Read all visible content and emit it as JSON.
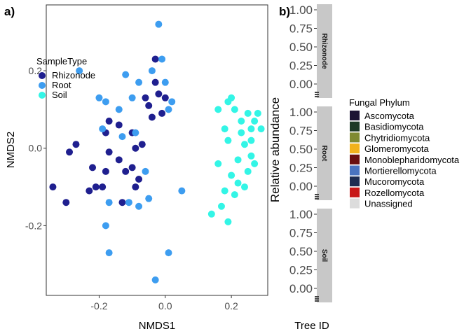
{
  "chart_data": [
    {
      "panel_tag": "a)",
      "type": "scatter",
      "xlabel": "NMDS1",
      "ylabel": "NMDS2",
      "xlim": [
        -0.36,
        0.31
      ],
      "ylim": [
        -0.38,
        0.37
      ],
      "xticks": [
        -0.2,
        0.0,
        0.2
      ],
      "xtick_labels": [
        "-0.2",
        "0.0",
        "0.2"
      ],
      "yticks": [
        -0.2,
        0.0,
        0.2
      ],
      "ytick_labels": [
        "-0.2",
        "0.0",
        "0.2"
      ],
      "grid": false,
      "legend": {
        "title": "SampleType",
        "placement": "top-left",
        "entries": [
          "Rhizonode",
          "Root",
          "Soil"
        ]
      },
      "colors": {
        "Rhizonode": "#1f1f8f",
        "Root": "#3d9df0",
        "Soil": "#33f5e6"
      },
      "series": [
        {
          "name": "Rhizonode",
          "points": [
            [
              -0.34,
              -0.1
            ],
            [
              -0.3,
              -0.14
            ],
            [
              -0.29,
              -0.01
            ],
            [
              -0.27,
              0.01
            ],
            [
              -0.23,
              -0.11
            ],
            [
              -0.22,
              -0.05
            ],
            [
              -0.21,
              -0.1
            ],
            [
              -0.19,
              -0.1
            ],
            [
              -0.18,
              -0.06
            ],
            [
              -0.18,
              0.04
            ],
            [
              -0.17,
              0.07
            ],
            [
              -0.17,
              -0.01
            ],
            [
              -0.14,
              -0.03
            ],
            [
              -0.14,
              0.06
            ],
            [
              -0.13,
              -0.14
            ],
            [
              -0.12,
              -0.06
            ],
            [
              -0.1,
              -0.05
            ],
            [
              -0.1,
              0.04
            ],
            [
              -0.09,
              0.0
            ],
            [
              -0.09,
              -0.1
            ],
            [
              -0.08,
              -0.08
            ],
            [
              -0.07,
              0.01
            ],
            [
              -0.06,
              0.13
            ],
            [
              -0.05,
              0.11
            ],
            [
              -0.04,
              0.08
            ],
            [
              -0.03,
              0.17
            ],
            [
              -0.02,
              0.14
            ],
            [
              -0.01,
              0.09
            ],
            [
              0.0,
              0.13
            ],
            [
              -0.03,
              0.23
            ]
          ]
        },
        {
          "name": "Root",
          "points": [
            [
              -0.26,
              0.2
            ],
            [
              -0.2,
              0.13
            ],
            [
              -0.19,
              0.05
            ],
            [
              -0.18,
              0.12
            ],
            [
              -0.18,
              -0.2
            ],
            [
              -0.17,
              -0.14
            ],
            [
              -0.17,
              -0.27
            ],
            [
              -0.14,
              0.1
            ],
            [
              -0.13,
              0.03
            ],
            [
              -0.12,
              0.19
            ],
            [
              -0.11,
              -0.14
            ],
            [
              -0.1,
              0.13
            ],
            [
              -0.09,
              0.04
            ],
            [
              -0.08,
              -0.15
            ],
            [
              -0.08,
              0.17
            ],
            [
              -0.06,
              -0.06
            ],
            [
              -0.05,
              -0.13
            ],
            [
              -0.04,
              0.2
            ],
            [
              -0.02,
              0.32
            ],
            [
              -0.01,
              0.23
            ],
            [
              0.0,
              0.17
            ],
            [
              0.01,
              0.1
            ],
            [
              0.02,
              0.12
            ],
            [
              0.05,
              -0.11
            ],
            [
              0.01,
              -0.27
            ],
            [
              -0.03,
              -0.34
            ]
          ]
        },
        {
          "name": "Soil",
          "points": [
            [
              0.14,
              -0.17
            ],
            [
              0.16,
              -0.04
            ],
            [
              0.18,
              -0.11
            ],
            [
              0.18,
              0.05
            ],
            [
              0.19,
              -0.19
            ],
            [
              0.19,
              0.02
            ],
            [
              0.2,
              -0.07
            ],
            [
              0.2,
              0.13
            ],
            [
              0.21,
              0.1
            ],
            [
              0.21,
              -0.12
            ],
            [
              0.22,
              -0.03
            ],
            [
              0.22,
              -0.09
            ],
            [
              0.23,
              0.07
            ],
            [
              0.23,
              0.04
            ],
            [
              0.24,
              0.01
            ],
            [
              0.24,
              -0.1
            ],
            [
              0.25,
              -0.06
            ],
            [
              0.25,
              0.09
            ],
            [
              0.26,
              0.05
            ],
            [
              0.26,
              0.02
            ],
            [
              0.26,
              -0.02
            ],
            [
              0.27,
              0.07
            ],
            [
              0.27,
              -0.04
            ],
            [
              0.28,
              0.09
            ],
            [
              0.29,
              0.05
            ],
            [
              0.19,
              0.12
            ],
            [
              0.17,
              -0.15
            ],
            [
              0.16,
              0.1
            ]
          ]
        }
      ]
    },
    {
      "panel_tag": "b)",
      "type": "bar",
      "stacked": true,
      "xlabel": "Tree ID",
      "ylabel": "Relative abundance",
      "ylim": [
        0,
        1
      ],
      "yticks": [
        0,
        0.25,
        0.5,
        0.75,
        1.0
      ],
      "ytick_labels": [
        "0.00",
        "0.25",
        "0.50",
        "0.75",
        "1.00"
      ],
      "facets": [
        "Rhizonode",
        "Root",
        "Soil"
      ],
      "legend": {
        "title": "Fungal Phylum",
        "placement": "right",
        "entries": [
          "Ascomycota",
          "Basidiomycota",
          "Chytridiomycota",
          "Glomeromycota",
          "Monoblepharidomycota",
          "Mortierellomycota",
          "Mucoromycota",
          "Rozellomycota",
          "Unassigned"
        ]
      },
      "colors": {
        "Ascomycota": "#1c1434",
        "Basidiomycota": "#1e3a26",
        "Chytridiomycota": "#7f8a32",
        "Glomeromycota": "#f2b21c",
        "Monoblepharidomycota": "#6a0f0f",
        "Mortierellomycota": "#4a74c0",
        "Mucoromycota": "#1e2d52",
        "Rozellomycota": "#c81818",
        "Unassigned": "#dcdcdc"
      }
    }
  ]
}
